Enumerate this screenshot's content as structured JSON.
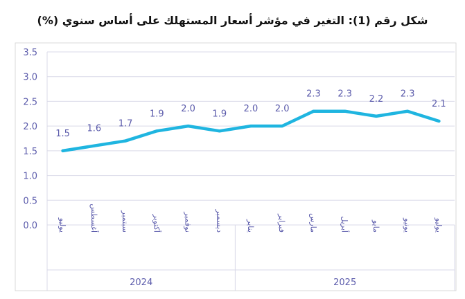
{
  "chart_data": {
    "type": "line",
    "title": "شكل رقم (1): التغير في مؤشر أسعار المستهلك على أساس سنوي (%)",
    "categories": [
      "يوليو",
      "أغسطس",
      "سبتمبر",
      "أكتوبر",
      "نوفمبر",
      "ديسمبر",
      "يناير",
      "فبراير",
      "مارس",
      "أبريل",
      "مايو",
      "يونيو",
      "يوليو"
    ],
    "groups": [
      {
        "label": "2024",
        "count": 6
      },
      {
        "label": "2025",
        "count": 7
      }
    ],
    "series": [
      {
        "values": [
          1.5,
          1.6,
          1.7,
          1.9,
          2.0,
          1.9,
          2.0,
          2.0,
          2.3,
          2.3,
          2.2,
          2.3,
          2.1
        ]
      }
    ],
    "data_labels": [
      "1.5",
      "1.6",
      "1.7",
      "1.9",
      "2.0",
      "1.9",
      "2.0",
      "2.0",
      "2.3",
      "2.3",
      "2.2",
      "2.3",
      "2.1"
    ],
    "yticks": [
      "0.0",
      "0.5",
      "1.0",
      "1.5",
      "2.0",
      "2.5",
      "3.0",
      "3.5"
    ],
    "ylim": [
      0,
      3.5
    ],
    "grid": true,
    "legend": "none",
    "colors": {
      "line": "#1fb5e0",
      "text": "#5b5bab",
      "grid": "#d9d9e8"
    }
  }
}
